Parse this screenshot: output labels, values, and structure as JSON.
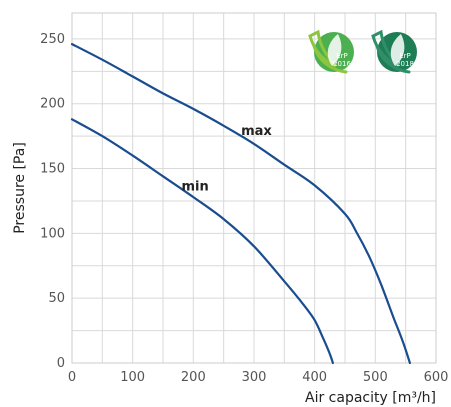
{
  "chart_data": {
    "type": "line",
    "title": "",
    "xlabel": "Air capacity [m³/h]",
    "ylabel": "Pressure [Pa]",
    "xlim": [
      0,
      600
    ],
    "ylim": [
      0,
      270
    ],
    "xticks": [
      0,
      100,
      200,
      300,
      400,
      500,
      600
    ],
    "yticks": [
      0,
      50,
      100,
      150,
      200,
      250
    ],
    "grid": true,
    "legend": "none",
    "series": [
      {
        "name": "max",
        "color": "#1a4d8f",
        "x": [
          0,
          50,
          100,
          150,
          200,
          250,
          300,
          350,
          400,
          450,
          470,
          490,
          510,
          530,
          545,
          557
        ],
        "y": [
          246,
          234,
          221,
          208,
          196,
          183,
          169,
          153,
          137,
          115,
          100,
          82,
          60,
          35,
          17,
          0
        ]
      },
      {
        "name": "min",
        "color": "#1a4d8f",
        "x": [
          0,
          50,
          100,
          150,
          200,
          250,
          300,
          350,
          380,
          400,
          415,
          425,
          430
        ],
        "y": [
          188,
          175,
          160,
          144,
          128,
          111,
          90,
          63,
          46,
          33,
          18,
          7,
          0
        ]
      }
    ],
    "annotations": [
      {
        "text": "max",
        "x": 304,
        "y": 176
      },
      {
        "text": "min",
        "x": 203,
        "y": 133
      }
    ]
  },
  "badges": [
    {
      "label": "ErP",
      "year": "2016",
      "color": "#4caf50"
    },
    {
      "label": "ErP",
      "year": "2018",
      "color": "#1e7d55"
    }
  ]
}
